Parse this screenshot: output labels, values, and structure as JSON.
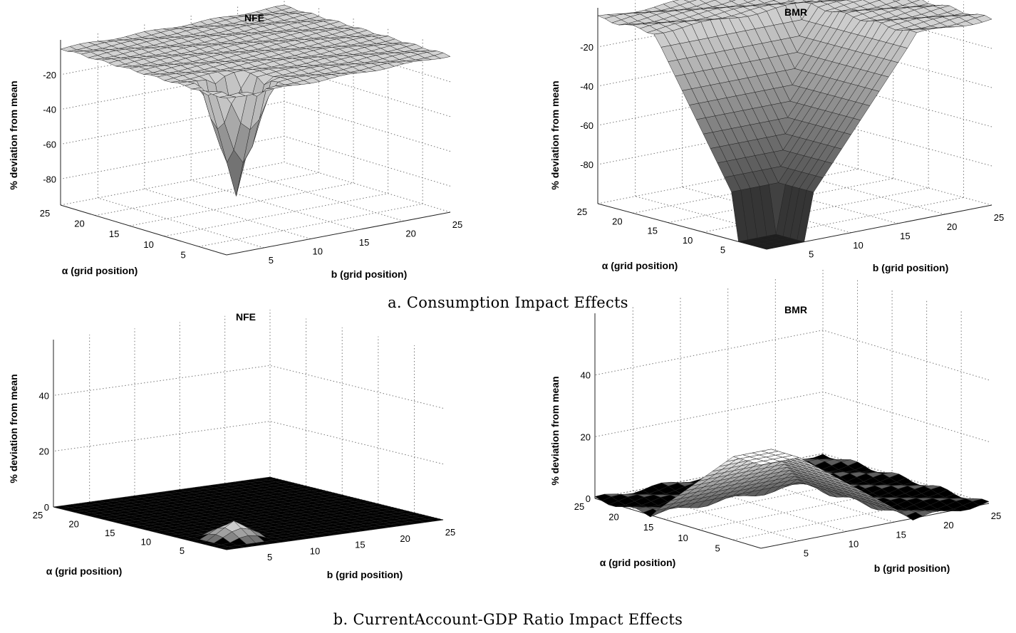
{
  "captions": {
    "top": "a. Consumption Impact Effects",
    "bottom": "b. CurrentAccount-GDP Ratio Impact Effects"
  },
  "chart_data": [
    {
      "type": "surface",
      "title": "NFE",
      "section": "a. Consumption Impact Effects",
      "xlabel": "α (grid position)",
      "ylabel": "b (grid position)",
      "zlabel": "% deviation from mean",
      "xticks": [
        5,
        10,
        15,
        20,
        25
      ],
      "yticks": [
        5,
        10,
        15,
        20,
        25
      ],
      "zticks": [
        -20,
        -40,
        -60,
        -80
      ],
      "xlim": [
        1,
        25
      ],
      "ylim": [
        1,
        25
      ],
      "zlim": [
        -95,
        0
      ],
      "grid": true,
      "surface": {
        "kind": "point_dip",
        "base": -5,
        "min": -70,
        "center": [
          5,
          5
        ],
        "radius": 3.2
      }
    },
    {
      "type": "surface",
      "title": "BMR",
      "section": "a. Consumption Impact Effects",
      "xlabel": "α (grid position)",
      "ylabel": "b (grid position)",
      "zlabel": "% deviation from mean",
      "xticks": [
        5,
        10,
        15,
        20,
        25
      ],
      "yticks": [
        5,
        10,
        15,
        20,
        25
      ],
      "zticks": [
        -20,
        -40,
        -60,
        -80
      ],
      "xlim": [
        1,
        25
      ],
      "ylim": [
        1,
        25
      ],
      "zlim": [
        -100,
        0
      ],
      "grid": true,
      "surface": {
        "kind": "wide_valley",
        "base": -5,
        "floor": -82,
        "drop": -100,
        "span": 17
      }
    },
    {
      "type": "surface",
      "title": "NFE",
      "section": "b. CurrentAccount-GDP Ratio Impact Effects",
      "xlabel": "α (grid position)",
      "ylabel": "b (grid position)",
      "zlabel": "% deviation from mean",
      "xticks": [
        5,
        10,
        15,
        20,
        25
      ],
      "yticks": [
        5,
        10,
        15,
        20,
        25
      ],
      "zticks": [
        0,
        20,
        40
      ],
      "xlim": [
        1,
        25
      ],
      "ylim": [
        1,
        25
      ],
      "zlim": [
        0,
        60
      ],
      "grid": true,
      "surface": {
        "kind": "small_peak",
        "base": 0,
        "max": 6,
        "center": [
          5,
          5
        ],
        "radius": 3
      }
    },
    {
      "type": "surface",
      "title": "BMR",
      "section": "b. CurrentAccount-GDP Ratio Impact Effects",
      "xlabel": "α (grid position)",
      "ylabel": "b (grid position)",
      "zlabel": "% deviation from mean",
      "xticks": [
        5,
        10,
        15,
        20,
        25
      ],
      "yticks": [
        5,
        10,
        15,
        20,
        25
      ],
      "zticks": [
        0,
        20,
        40
      ],
      "xlim": [
        1,
        25
      ],
      "ylim": [
        1,
        25
      ],
      "zlim": [
        0,
        60
      ],
      "grid": true,
      "surface": {
        "kind": "ridge_peak",
        "base": 0,
        "max": 27,
        "center": [
          5,
          5
        ],
        "span": 17
      }
    }
  ]
}
